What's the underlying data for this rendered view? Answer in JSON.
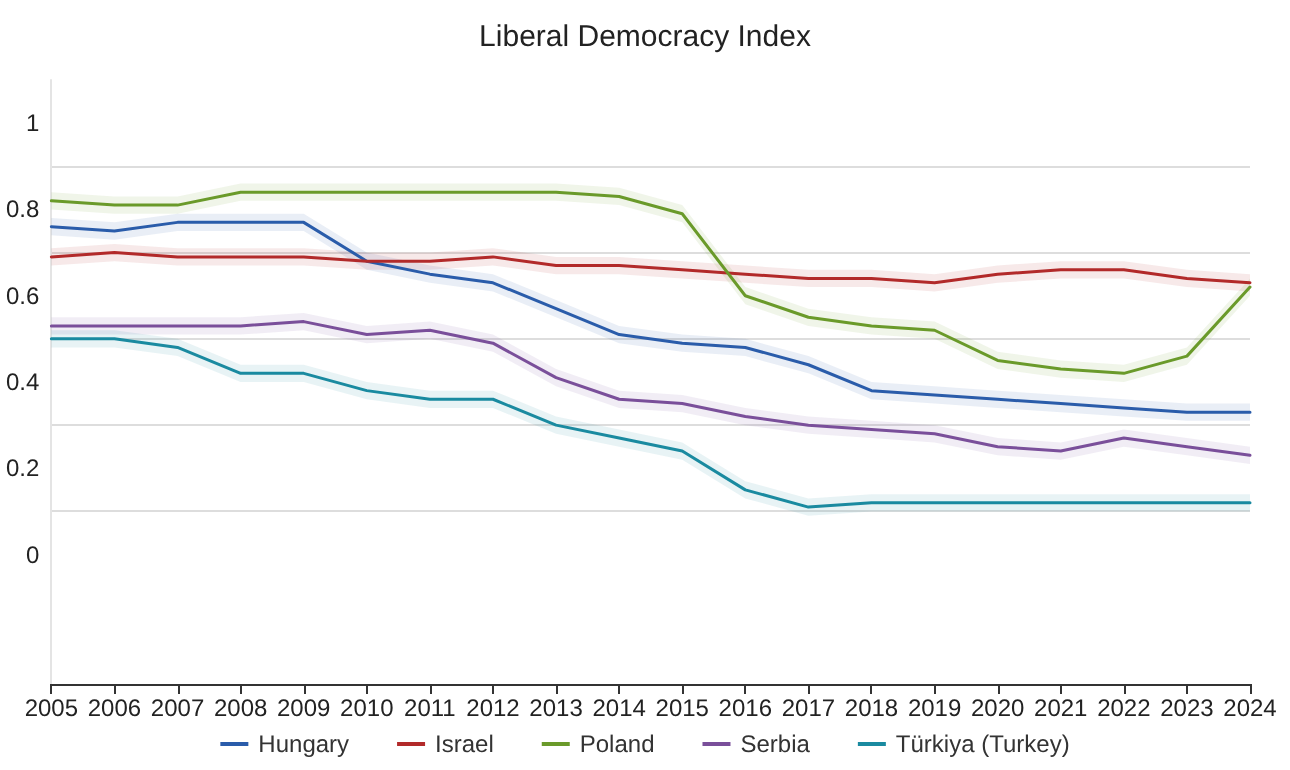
{
  "chart_data": {
    "type": "line",
    "title": "Liberal Democracy Index",
    "categories": [
      "2005",
      "2006",
      "2007",
      "2008",
      "2009",
      "2010",
      "2011",
      "2012",
      "2013",
      "2014",
      "2015",
      "2016",
      "2017",
      "2018",
      "2019",
      "2020",
      "2021",
      "2022",
      "2023",
      "2024"
    ],
    "ylim": [
      -0.3,
      1.1
    ],
    "yticks": [
      0,
      {
        "value": 0.1,
        "label": null
      },
      0.2,
      {
        "value": 0.3,
        "label": null
      },
      0.4,
      {
        "value": 0.5,
        "label": null
      },
      0.6,
      {
        "value": 0.7,
        "label": null
      },
      0.8,
      {
        "value": 0.9,
        "label": null
      },
      1
    ],
    "grid": "y",
    "legend": "bottom",
    "marker": "none",
    "series": [
      {
        "name": "Hungary",
        "color": "#2a5caa",
        "values": [
          0.76,
          0.75,
          0.77,
          0.77,
          0.77,
          0.68,
          0.65,
          0.63,
          0.57,
          0.51,
          0.49,
          0.48,
          0.44,
          0.38,
          0.37,
          0.36,
          0.35,
          0.34,
          0.33,
          0.33
        ],
        "lower": [
          0.74,
          0.73,
          0.75,
          0.75,
          0.75,
          0.66,
          0.63,
          0.61,
          0.55,
          0.49,
          0.47,
          0.46,
          0.42,
          0.36,
          0.35,
          0.34,
          0.33,
          0.32,
          0.31,
          0.31
        ],
        "upper": [
          0.78,
          0.77,
          0.79,
          0.79,
          0.79,
          0.7,
          0.67,
          0.65,
          0.59,
          0.53,
          0.51,
          0.5,
          0.46,
          0.4,
          0.39,
          0.38,
          0.37,
          0.36,
          0.35,
          0.35
        ]
      },
      {
        "name": "Israel",
        "color": "#b22a2a",
        "values": [
          0.69,
          0.7,
          0.69,
          0.69,
          0.69,
          0.68,
          0.68,
          0.69,
          0.67,
          0.67,
          0.66,
          0.65,
          0.64,
          0.64,
          0.63,
          0.65,
          0.66,
          0.66,
          0.64,
          0.63
        ],
        "lower": [
          0.67,
          0.68,
          0.67,
          0.67,
          0.67,
          0.66,
          0.66,
          0.67,
          0.65,
          0.65,
          0.64,
          0.63,
          0.62,
          0.62,
          0.61,
          0.63,
          0.64,
          0.64,
          0.62,
          0.61
        ],
        "upper": [
          0.71,
          0.72,
          0.71,
          0.71,
          0.71,
          0.7,
          0.7,
          0.71,
          0.69,
          0.69,
          0.68,
          0.67,
          0.66,
          0.66,
          0.65,
          0.67,
          0.68,
          0.68,
          0.66,
          0.65
        ]
      },
      {
        "name": "Poland",
        "color": "#6a9a2a",
        "values": [
          0.82,
          0.81,
          0.81,
          0.84,
          0.84,
          0.84,
          0.84,
          0.84,
          0.84,
          0.83,
          0.79,
          0.6,
          0.55,
          0.53,
          0.52,
          0.45,
          0.43,
          0.42,
          0.46,
          0.62
        ],
        "lower": [
          0.8,
          0.79,
          0.79,
          0.82,
          0.82,
          0.82,
          0.82,
          0.82,
          0.82,
          0.81,
          0.77,
          0.58,
          0.53,
          0.51,
          0.5,
          0.43,
          0.41,
          0.4,
          0.44,
          0.6
        ],
        "upper": [
          0.84,
          0.83,
          0.83,
          0.86,
          0.86,
          0.86,
          0.86,
          0.86,
          0.86,
          0.85,
          0.81,
          0.62,
          0.57,
          0.55,
          0.54,
          0.47,
          0.45,
          0.44,
          0.48,
          0.64
        ]
      },
      {
        "name": "Serbia",
        "color": "#7a4f9a",
        "values": [
          0.53,
          0.53,
          0.53,
          0.53,
          0.54,
          0.51,
          0.52,
          0.49,
          0.41,
          0.36,
          0.35,
          0.32,
          0.3,
          0.29,
          0.28,
          0.25,
          0.24,
          0.27,
          0.25,
          0.23
        ],
        "lower": [
          0.51,
          0.51,
          0.51,
          0.51,
          0.52,
          0.49,
          0.5,
          0.47,
          0.39,
          0.34,
          0.33,
          0.3,
          0.28,
          0.27,
          0.26,
          0.23,
          0.22,
          0.25,
          0.23,
          0.21
        ],
        "upper": [
          0.55,
          0.55,
          0.55,
          0.55,
          0.56,
          0.53,
          0.54,
          0.51,
          0.43,
          0.38,
          0.37,
          0.34,
          0.32,
          0.31,
          0.3,
          0.27,
          0.26,
          0.29,
          0.27,
          0.25
        ]
      },
      {
        "name": "Türkiya (Turkey)",
        "color": "#1a8aa0",
        "values": [
          0.5,
          0.5,
          0.48,
          0.42,
          0.42,
          0.38,
          0.36,
          0.36,
          0.3,
          0.27,
          0.24,
          0.15,
          0.11,
          0.12,
          0.12,
          0.12,
          0.12,
          0.12,
          0.12,
          0.12
        ],
        "lower": [
          0.48,
          0.48,
          0.46,
          0.4,
          0.4,
          0.36,
          0.34,
          0.34,
          0.28,
          0.25,
          0.22,
          0.13,
          0.09,
          0.1,
          0.1,
          0.1,
          0.1,
          0.1,
          0.1,
          0.1
        ],
        "upper": [
          0.52,
          0.52,
          0.5,
          0.44,
          0.44,
          0.4,
          0.38,
          0.38,
          0.32,
          0.29,
          0.26,
          0.17,
          0.13,
          0.14,
          0.14,
          0.14,
          0.14,
          0.14,
          0.14,
          0.14
        ]
      }
    ]
  }
}
